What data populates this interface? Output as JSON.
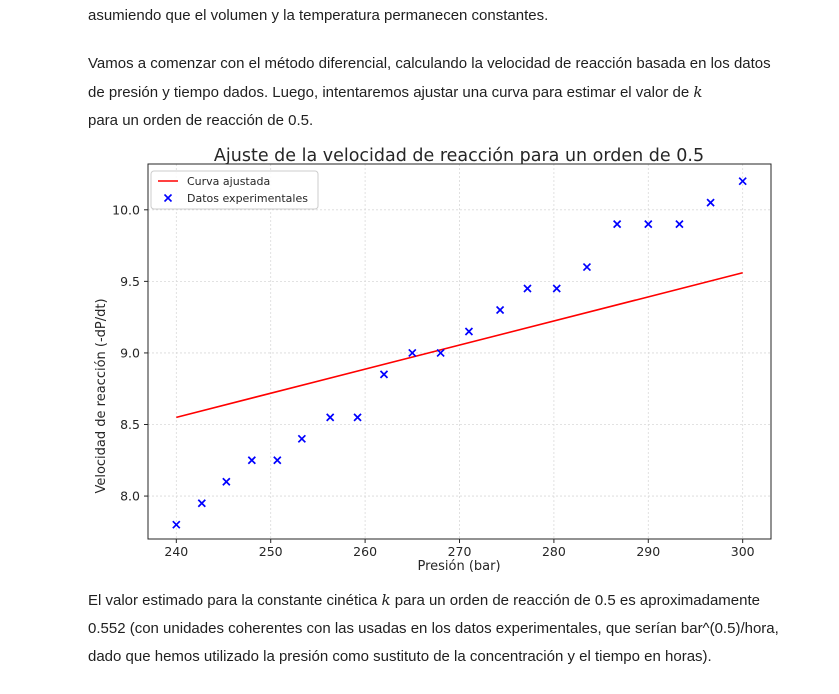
{
  "text": {
    "intro_line": "asumiendo que el volumen y la temperatura permanecen constantes.",
    "method_para_before_k": "Vamos a comenzar con el método diferencial, calculando la velocidad de reacción basada en los datos de presión y tiempo dados. Luego, intentaremos ajustar una curva para estimar el valor de ",
    "k_symbol": "k",
    "method_para_after_k": "para un orden de reacción de 0.5.",
    "result_para_before_k": "El valor estimado para la constante cinética ",
    "result_para_after_k": " para un orden de reacción de 0.5 es aproximadamente 0.552 (con unidades coherentes con las usadas en los datos experimentales, que serían bar^(0.5)/hora, dado que hemos utilizado la presión como sustituto de la concentración y el tiempo en horas)."
  },
  "chart_data": {
    "type": "scatter",
    "title": "Ajuste de la velocidad de reacción para un orden de 0.5",
    "xlabel": "Presión (bar)",
    "ylabel": "Velocidad de reacción (-dP/dt)",
    "xlim": [
      237,
      303
    ],
    "ylim": [
      7.7,
      10.32
    ],
    "xticks": [
      240,
      250,
      260,
      270,
      280,
      290,
      300
    ],
    "yticks": [
      8.0,
      8.5,
      9.0,
      9.5,
      10.0
    ],
    "ytick_labels": [
      "8.0",
      "8.5",
      "9.0",
      "9.5",
      "10.0"
    ],
    "grid": true,
    "legend_position": "upper left",
    "series": [
      {
        "name": "Curva ajustada",
        "kind": "line",
        "color": "#ff0000",
        "x": [
          240,
          300
        ],
        "y": [
          8.55,
          9.56
        ]
      },
      {
        "name": "Datos experimentales",
        "kind": "scatter",
        "marker": "x",
        "color": "#0000ff",
        "x": [
          240,
          242.7,
          245.3,
          248,
          250.7,
          253.3,
          256.3,
          259.2,
          262,
          265,
          268,
          271,
          274.3,
          277.2,
          280.3,
          283.5,
          286.7,
          290,
          293.3,
          296.6,
          300
        ],
        "y": [
          7.8,
          7.95,
          8.1,
          8.25,
          8.25,
          8.4,
          8.55,
          8.55,
          8.85,
          9.0,
          9.0,
          9.15,
          9.3,
          9.45,
          9.45,
          9.6,
          9.9,
          9.9,
          9.9,
          10.05,
          10.2
        ]
      }
    ]
  }
}
